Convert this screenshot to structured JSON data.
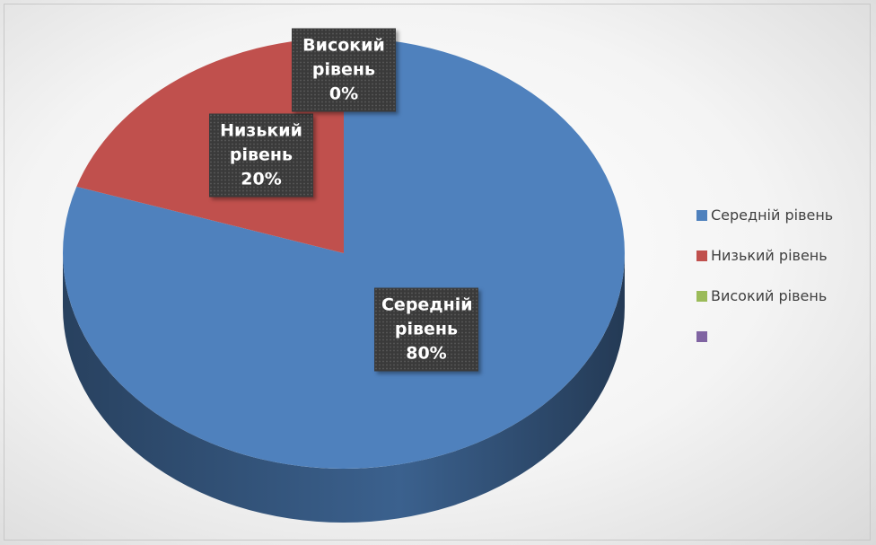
{
  "chart_data": {
    "type": "pie",
    "categories": [
      "Середній рівень",
      "Низький рівень",
      "Високий рівень",
      null
    ],
    "values": [
      80,
      20,
      0,
      0
    ],
    "value_labels": [
      "80%",
      "20%",
      "0%",
      null
    ],
    "colors": [
      "#4f81bd",
      "#c0504d",
      "#9bbb59",
      "#8064a2"
    ],
    "legend": "right"
  }
}
